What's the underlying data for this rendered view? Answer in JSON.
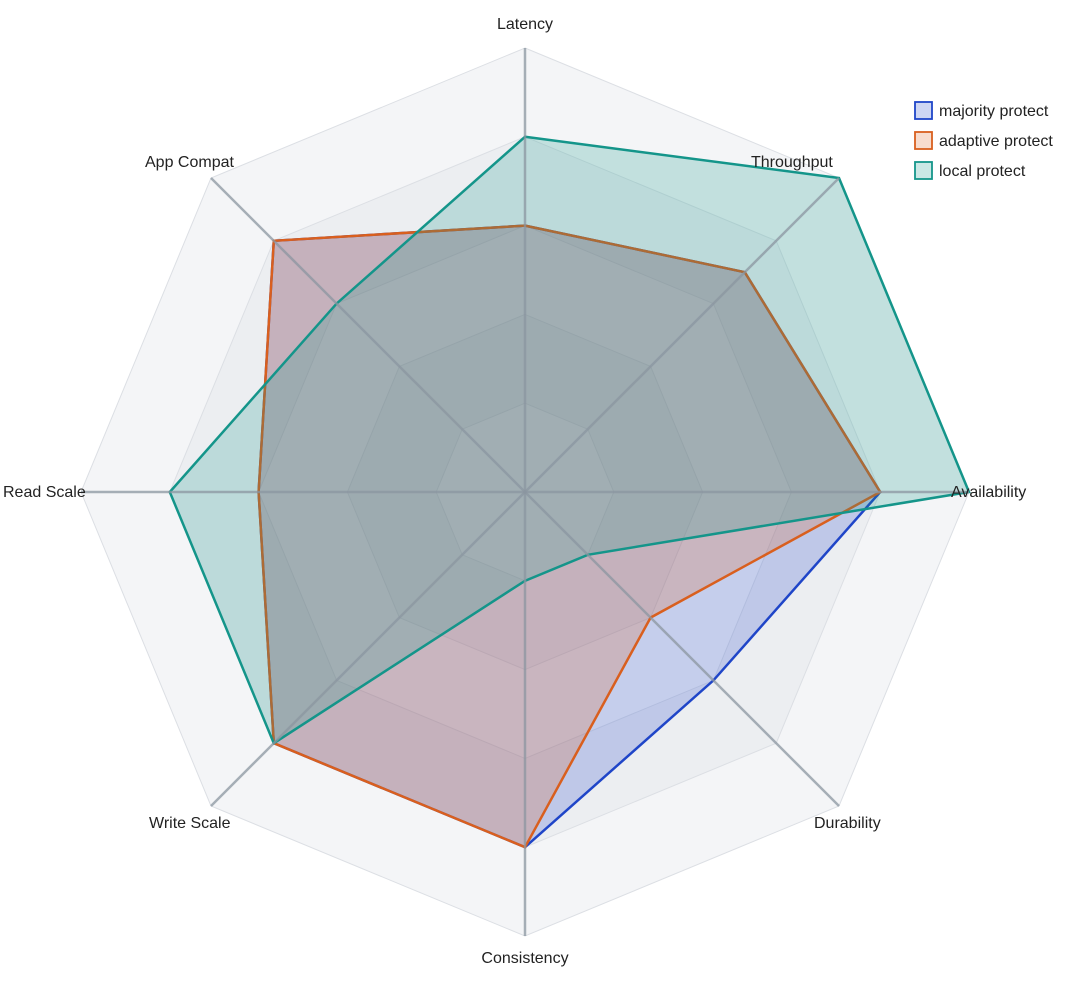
{
  "chart_data": {
    "type": "radar",
    "title": "",
    "axes": [
      "Latency",
      "Throughput",
      "Availability",
      "Durability",
      "Consistency",
      "Write Scale",
      "Read Scale",
      "App Compat"
    ],
    "range": [
      0,
      5
    ],
    "grid_levels": 5,
    "legend_position": "top-right",
    "series": [
      {
        "name": "majority protect",
        "color": "#1f45c8",
        "values": [
          3,
          3.5,
          4,
          3,
          4,
          4,
          3,
          4
        ]
      },
      {
        "name": "adaptive protect",
        "color": "#d95f1e",
        "values": [
          3,
          3.5,
          4,
          2,
          4,
          4,
          3,
          4
        ]
      },
      {
        "name": "local protect",
        "color": "#14958a",
        "values": [
          4,
          5,
          5,
          1,
          1,
          4,
          4,
          3
        ]
      }
    ]
  }
}
